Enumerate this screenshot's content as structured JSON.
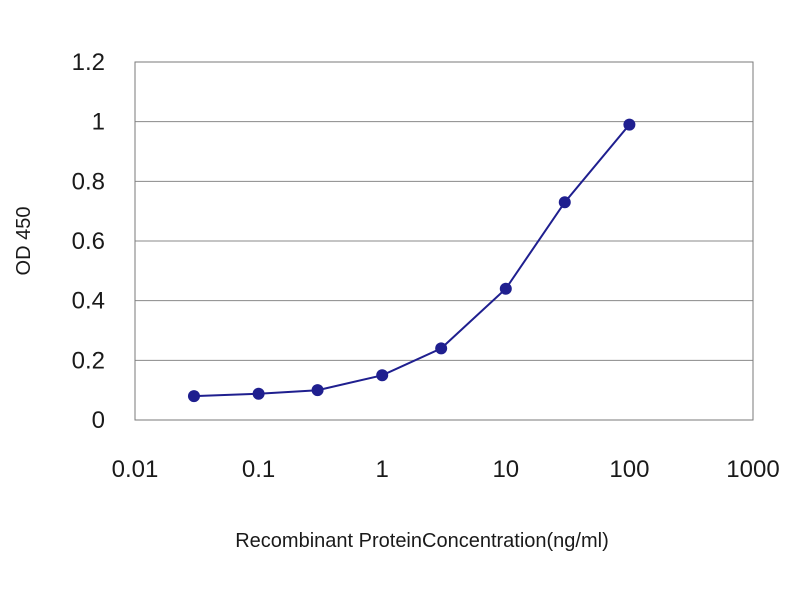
{
  "chart_data": {
    "type": "line",
    "title": "",
    "xlabel": "Recombinant ProteinConcentration(ng/ml)",
    "ylabel": "OD 450",
    "x_scale": "log",
    "xlim": [
      0.01,
      1000
    ],
    "ylim": [
      0,
      1.2
    ],
    "grid": "horizontal",
    "legend": "none",
    "x_ticks": [
      "0.01",
      "0.1",
      "1",
      "10",
      "100",
      "1000"
    ],
    "y_ticks": [
      "0",
      "0.2",
      "0.4",
      "0.6",
      "0.8",
      "1",
      "1.2"
    ],
    "x_tick_values": [
      0.01,
      0.1,
      1,
      10,
      100,
      1000
    ],
    "y_tick_values": [
      0,
      0.2,
      0.4,
      0.6,
      0.8,
      1,
      1.2
    ],
    "series": [
      {
        "color": "#1f1f8f",
        "x": [
          0.03,
          0.1,
          0.3,
          1,
          3,
          10,
          30,
          100
        ],
        "y": [
          0.08,
          0.088,
          0.1,
          0.15,
          0.24,
          0.44,
          0.73,
          0.99
        ]
      }
    ]
  }
}
